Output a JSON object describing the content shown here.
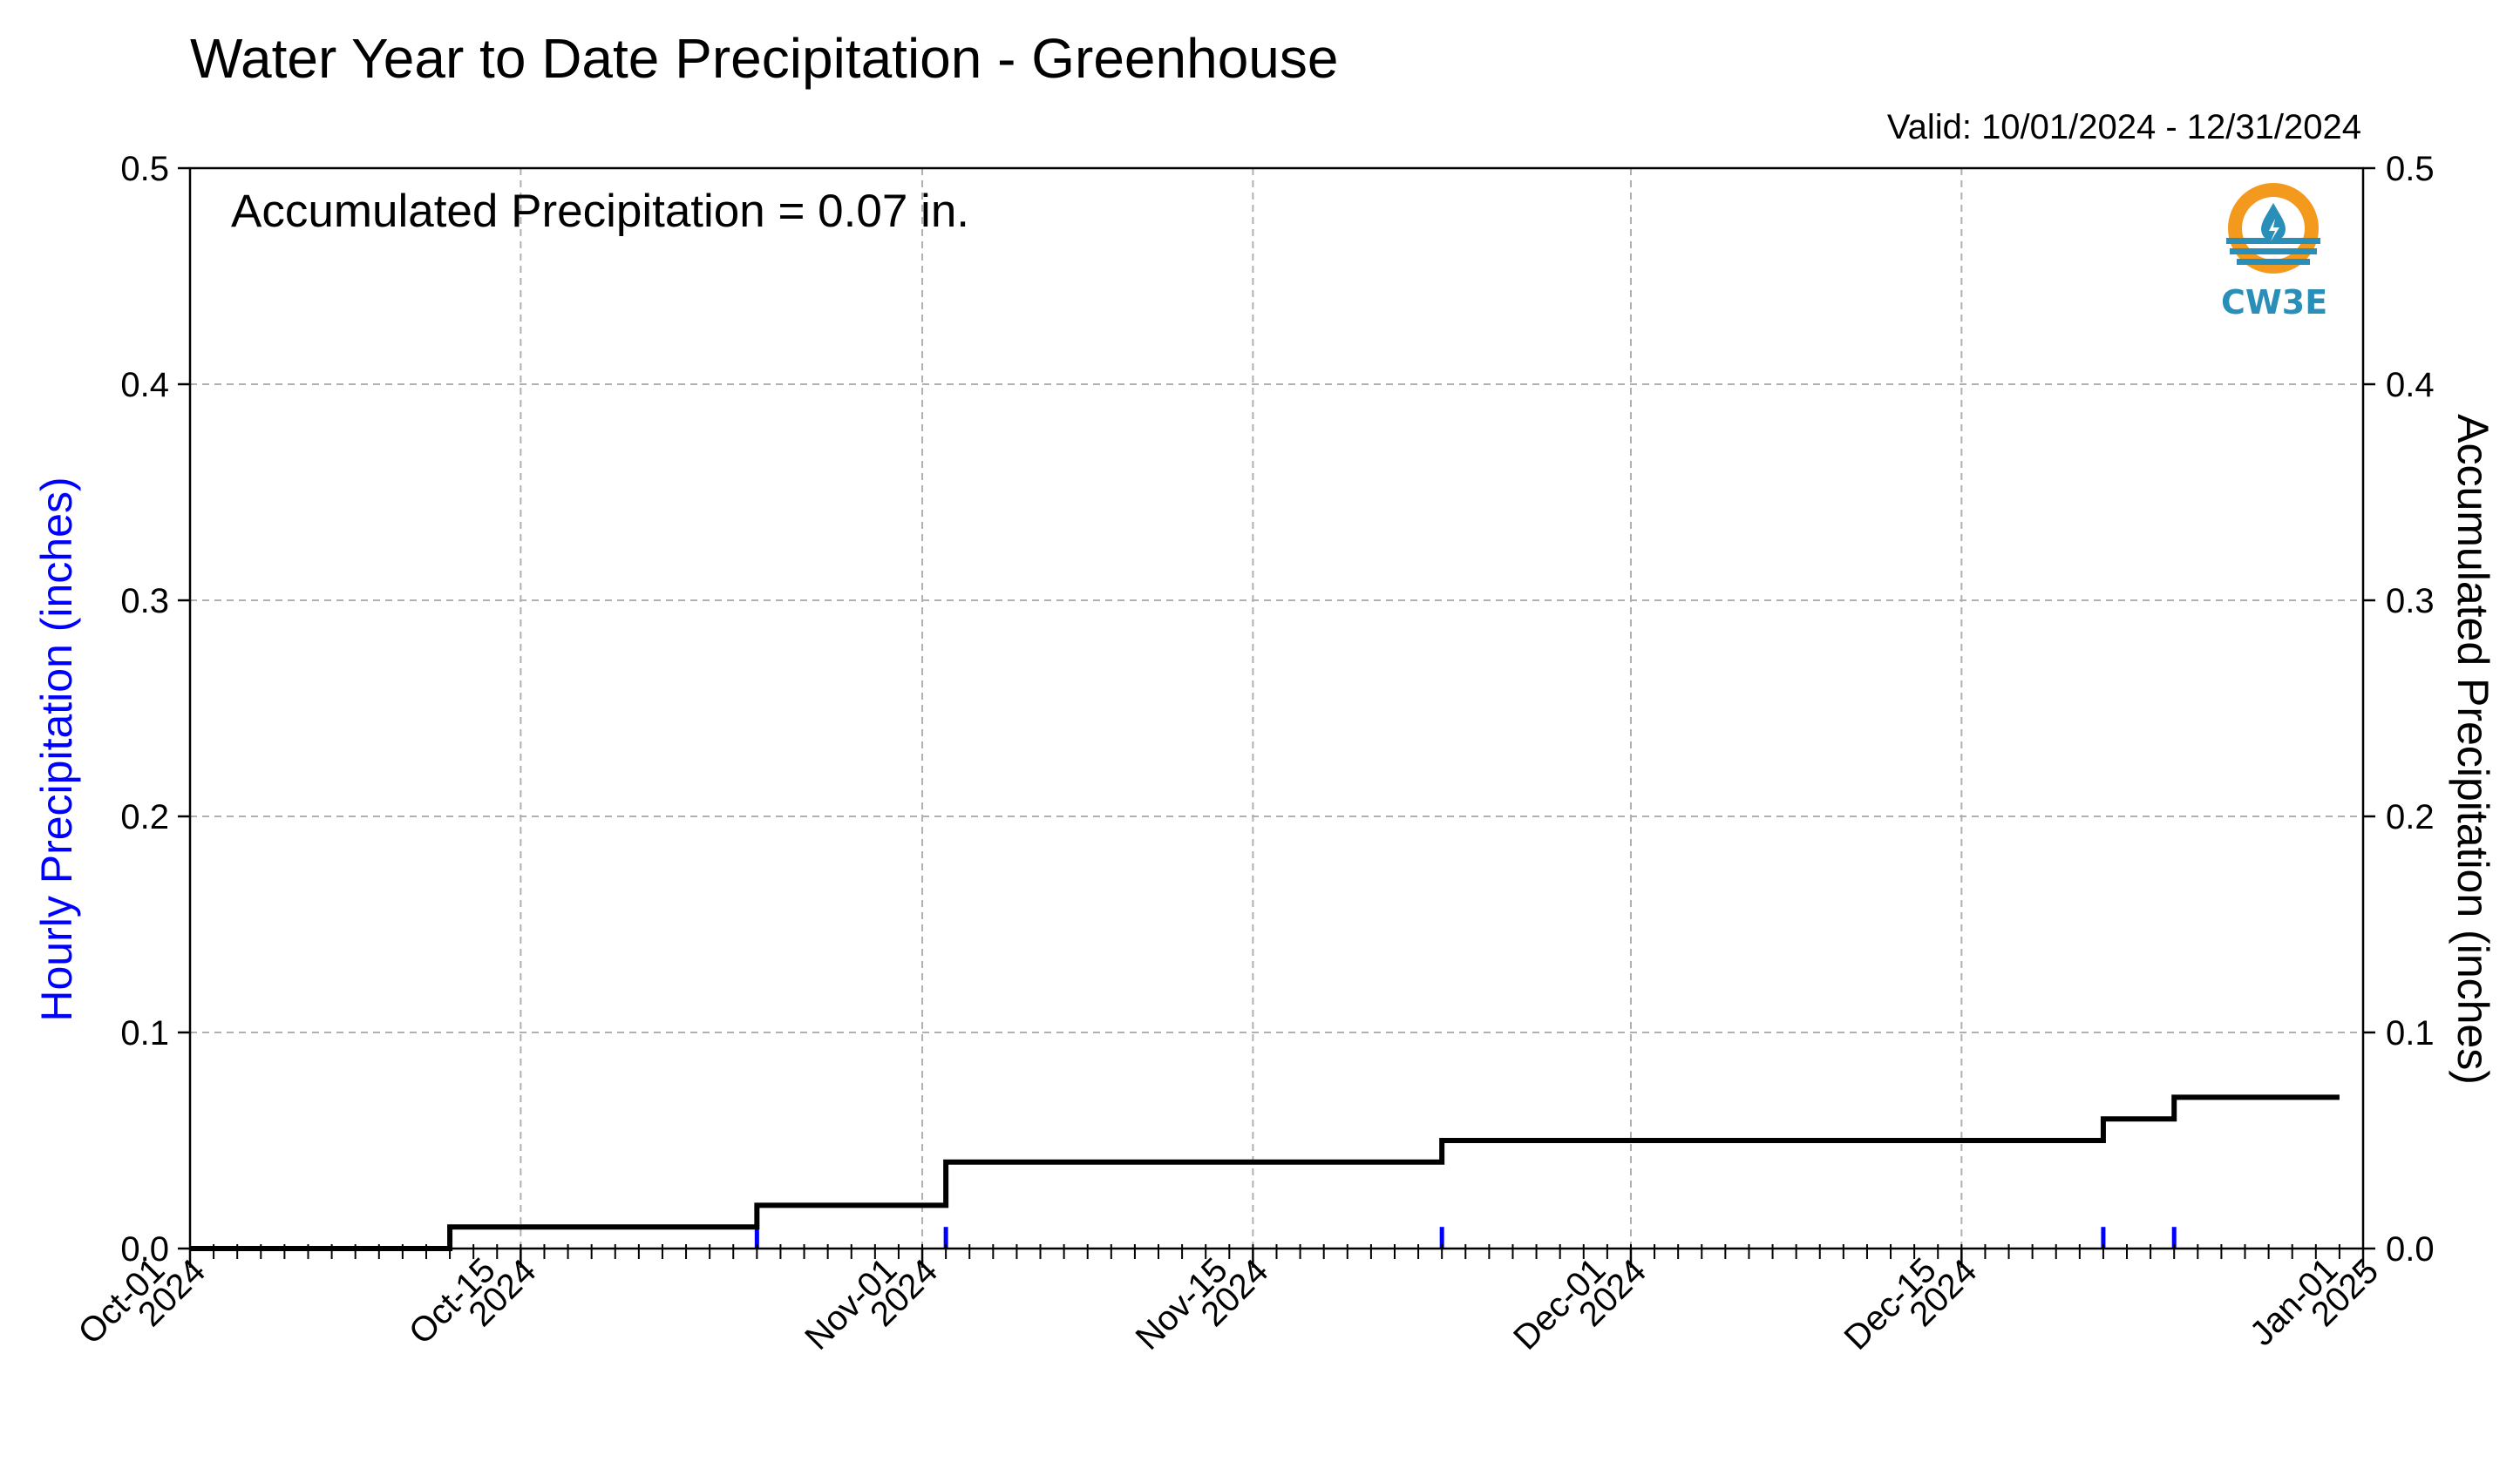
{
  "title": "Water Year to Date Precipitation - Greenhouse",
  "valid_text": "Valid: 10/01/2024 - 12/31/2024",
  "annotation": "Accumulated Precipitation = 0.07 in.",
  "logo_text": "CW3E",
  "colors": {
    "hourly": "#0000ff",
    "accumulated": "#000000",
    "grid": "#b0b0b0",
    "logo_orange": "#f39a1e",
    "logo_blue": "#2a8fb8"
  },
  "chart_data": {
    "type": "line",
    "x_axis": {
      "range": [
        "2024-10-01",
        "2025-01-01"
      ],
      "ticks": [
        {
          "date": "2024-10-01",
          "label": [
            "Oct-01",
            "2024"
          ]
        },
        {
          "date": "2024-10-15",
          "label": [
            "Oct-15",
            "2024"
          ]
        },
        {
          "date": "2024-11-01",
          "label": [
            "Nov-01",
            "2024"
          ]
        },
        {
          "date": "2024-11-15",
          "label": [
            "Nov-15",
            "2024"
          ]
        },
        {
          "date": "2024-12-01",
          "label": [
            "Dec-01",
            "2024"
          ]
        },
        {
          "date": "2024-12-15",
          "label": [
            "Dec-15",
            "2024"
          ]
        },
        {
          "date": "2025-01-01",
          "label": [
            "Jan-01",
            "2025"
          ]
        }
      ],
      "minor_ticks": "daily"
    },
    "y_left": {
      "label": "Hourly Precipitation (inches)",
      "range": [
        0,
        0.5
      ],
      "ticks": [
        "0.0",
        "0.1",
        "0.2",
        "0.3",
        "0.4",
        "0.5"
      ]
    },
    "y_right": {
      "label": "Accumulated Precipitation (inches)",
      "range": [
        0,
        0.5
      ],
      "ticks": [
        "0.0",
        "0.1",
        "0.2",
        "0.3",
        "0.4",
        "0.5"
      ]
    },
    "grid": true,
    "series": [
      {
        "axis": "left",
        "style": "bars",
        "points": [
          {
            "x": "2024-10-12",
            "y": 0.01
          },
          {
            "x": "2024-10-25",
            "y": 0.01
          },
          {
            "x": "2024-11-02",
            "y": 0.01
          },
          {
            "x": "2024-11-23",
            "y": 0.01
          },
          {
            "x": "2024-12-21",
            "y": 0.01
          },
          {
            "x": "2024-12-24",
            "y": 0.01
          }
        ]
      },
      {
        "axis": "right",
        "style": "step",
        "points": [
          {
            "x": "2024-10-01",
            "y": 0.0
          },
          {
            "x": "2024-10-12",
            "y": 0.01
          },
          {
            "x": "2024-10-25",
            "y": 0.02
          },
          {
            "x": "2024-11-02",
            "y": 0.04
          },
          {
            "x": "2024-11-23",
            "y": 0.05
          },
          {
            "x": "2024-12-21",
            "y": 0.06
          },
          {
            "x": "2024-12-24",
            "y": 0.07
          },
          {
            "x": "2024-12-31",
            "y": 0.07
          }
        ]
      }
    ]
  }
}
